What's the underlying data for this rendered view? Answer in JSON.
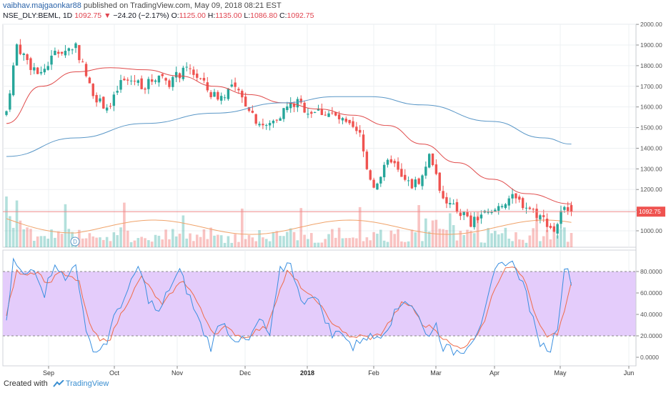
{
  "header": {
    "author": "vaibhav.majgaonkar88",
    "published": " published on TradingView.com, May 09, 2018 08:21 EST"
  },
  "legend": {
    "symbol": "NSE_DLY:BEML, 1D",
    "last": "1092.75",
    "change": "−24.20 (−2.17%)",
    "o_label": "O:",
    "o": "1125.00",
    "h_label": "H:",
    "h": "1135.00",
    "l_label": "L:",
    "l": "1086.80",
    "c_label": "C:",
    "c": "1092.75"
  },
  "footer": {
    "created_with": "Created with",
    "brand": "TradingView"
  },
  "colors": {
    "up": "#26a69a",
    "down": "#ef5350",
    "ma50": "#e04b4b",
    "ma200": "#5a97c7",
    "stoch_k": "#3a8fe0",
    "stoch_d": "#ef6c4a",
    "band": "#e4ccfb",
    "vol_ma": "#f0a36a"
  },
  "earnings_marker": "D",
  "chart_data": [
    {
      "type": "candlestick",
      "y_ticks": [
        "1000.00",
        "1100.00",
        "1200.00",
        "1300.00",
        "1400.00",
        "1500.00",
        "1600.00",
        "1700.00",
        "1800.00",
        "1900.00",
        "2000.00"
      ],
      "ylim": [
        940,
        2000
      ],
      "price_line": 1092.75,
      "price_label": "1092.75",
      "x_ticks": [
        "Sep",
        "Oct",
        "Nov",
        "Dec",
        "2018",
        "Feb",
        "Mar",
        "Apr",
        "May",
        "Jun"
      ],
      "anchors": [
        [
          0,
          1580
        ],
        [
          3,
          1900
        ],
        [
          7,
          1800
        ],
        [
          10,
          1760
        ],
        [
          14,
          1860
        ],
        [
          18,
          1880
        ],
        [
          20,
          1900
        ],
        [
          24,
          1700
        ],
        [
          27,
          1620
        ],
        [
          30,
          1600
        ],
        [
          33,
          1720
        ],
        [
          37,
          1730
        ],
        [
          40,
          1700
        ],
        [
          44,
          1760
        ],
        [
          47,
          1720
        ],
        [
          50,
          1760
        ],
        [
          53,
          1780
        ],
        [
          56,
          1730
        ],
        [
          59,
          1660
        ],
        [
          62,
          1650
        ],
        [
          65,
          1700
        ],
        [
          67,
          1660
        ],
        [
          70,
          1600
        ],
        [
          72,
          1540
        ],
        [
          75,
          1500
        ],
        [
          78,
          1550
        ],
        [
          81,
          1600
        ],
        [
          84,
          1620
        ],
        [
          87,
          1580
        ],
        [
          90,
          1580
        ],
        [
          93,
          1570
        ],
        [
          96,
          1540
        ],
        [
          99,
          1500
        ],
        [
          102,
          1460
        ],
        [
          104,
          1300
        ],
        [
          106,
          1220
        ],
        [
          108,
          1270
        ],
        [
          111,
          1350
        ],
        [
          114,
          1250
        ],
        [
          117,
          1220
        ],
        [
          120,
          1260
        ],
        [
          122,
          1380
        ],
        [
          124,
          1280
        ],
        [
          126,
          1150
        ],
        [
          129,
          1110
        ],
        [
          132,
          1080
        ],
        [
          134,
          1030
        ],
        [
          137,
          1080
        ],
        [
          140,
          1080
        ],
        [
          142,
          1120
        ],
        [
          145,
          1160
        ],
        [
          148,
          1140
        ],
        [
          151,
          1110
        ],
        [
          154,
          1070
        ],
        [
          156,
          1040
        ],
        [
          158,
          1000
        ],
        [
          160,
          1080
        ],
        [
          162,
          1120
        ],
        [
          163,
          1093
        ]
      ],
      "ma50_points": [
        [
          0,
          1520
        ],
        [
          10,
          1700
        ],
        [
          20,
          1770
        ],
        [
          30,
          1790
        ],
        [
          40,
          1780
        ],
        [
          50,
          1750
        ],
        [
          60,
          1700
        ],
        [
          70,
          1660
        ],
        [
          80,
          1620
        ],
        [
          90,
          1590
        ],
        [
          100,
          1560
        ],
        [
          110,
          1510
        ],
        [
          120,
          1420
        ],
        [
          130,
          1330
        ],
        [
          140,
          1250
        ],
        [
          150,
          1180
        ],
        [
          163,
          1130
        ]
      ],
      "ma200_points": [
        [
          0,
          1360
        ],
        [
          20,
          1450
        ],
        [
          40,
          1520
        ],
        [
          60,
          1570
        ],
        [
          80,
          1620
        ],
        [
          95,
          1650
        ],
        [
          105,
          1650
        ],
        [
          120,
          1610
        ],
        [
          140,
          1530
        ],
        [
          155,
          1450
        ],
        [
          163,
          1420
        ]
      ]
    },
    {
      "type": "volume",
      "note": "histogram with moving average overlaid on the price pane"
    },
    {
      "type": "line",
      "name": "Stochastic",
      "y_ticks": [
        "0.0000",
        "20.0000",
        "40.0000",
        "60.0000",
        "80.0000"
      ],
      "ylim": [
        -10,
        100
      ],
      "band": [
        20,
        80
      ],
      "k_anchors": [
        [
          0,
          30
        ],
        [
          2,
          90
        ],
        [
          5,
          75
        ],
        [
          8,
          85
        ],
        [
          11,
          60
        ],
        [
          14,
          90
        ],
        [
          17,
          70
        ],
        [
          20,
          90
        ],
        [
          23,
          20
        ],
        [
          26,
          5
        ],
        [
          29,
          15
        ],
        [
          32,
          45
        ],
        [
          35,
          60
        ],
        [
          38,
          85
        ],
        [
          41,
          55
        ],
        [
          44,
          40
        ],
        [
          47,
          65
        ],
        [
          50,
          80
        ],
        [
          53,
          55
        ],
        [
          56,
          30
        ],
        [
          59,
          10
        ],
        [
          62,
          35
        ],
        [
          65,
          20
        ],
        [
          68,
          15
        ],
        [
          70,
          15
        ],
        [
          73,
          35
        ],
        [
          76,
          20
        ],
        [
          79,
          80
        ],
        [
          82,
          90
        ],
        [
          85,
          50
        ],
        [
          88,
          60
        ],
        [
          91,
          45
        ],
        [
          94,
          20
        ],
        [
          97,
          25
        ],
        [
          100,
          8
        ],
        [
          103,
          20
        ],
        [
          106,
          18
        ],
        [
          109,
          25
        ],
        [
          112,
          40
        ],
        [
          115,
          55
        ],
        [
          118,
          45
        ],
        [
          121,
          20
        ],
        [
          124,
          30
        ],
        [
          126,
          10
        ],
        [
          129,
          5
        ],
        [
          132,
          8
        ],
        [
          135,
          20
        ],
        [
          138,
          40
        ],
        [
          141,
          80
        ],
        [
          144,
          90
        ],
        [
          147,
          85
        ],
        [
          150,
          60
        ],
        [
          153,
          20
        ],
        [
          155,
          10
        ],
        [
          157,
          8
        ],
        [
          159,
          30
        ],
        [
          161,
          85
        ],
        [
          163,
          72
        ]
      ],
      "d_anchors": [
        [
          0,
          40
        ],
        [
          3,
          80
        ],
        [
          6,
          78
        ],
        [
          9,
          80
        ],
        [
          12,
          68
        ],
        [
          15,
          80
        ],
        [
          18,
          75
        ],
        [
          21,
          70
        ],
        [
          24,
          30
        ],
        [
          27,
          15
        ],
        [
          30,
          18
        ],
        [
          33,
          40
        ],
        [
          36,
          58
        ],
        [
          39,
          75
        ],
        [
          42,
          62
        ],
        [
          45,
          48
        ],
        [
          48,
          62
        ],
        [
          51,
          72
        ],
        [
          54,
          58
        ],
        [
          57,
          38
        ],
        [
          60,
          22
        ],
        [
          63,
          28
        ],
        [
          66,
          22
        ],
        [
          69,
          18
        ],
        [
          72,
          25
        ],
        [
          75,
          28
        ],
        [
          78,
          55
        ],
        [
          81,
          80
        ],
        [
          84,
          70
        ],
        [
          87,
          58
        ],
        [
          90,
          52
        ],
        [
          93,
          35
        ],
        [
          96,
          28
        ],
        [
          99,
          18
        ],
        [
          102,
          20
        ],
        [
          105,
          18
        ],
        [
          108,
          22
        ],
        [
          111,
          35
        ],
        [
          114,
          50
        ],
        [
          117,
          48
        ],
        [
          120,
          30
        ],
        [
          123,
          28
        ],
        [
          126,
          18
        ],
        [
          129,
          10
        ],
        [
          132,
          10
        ],
        [
          135,
          18
        ],
        [
          138,
          35
        ],
        [
          141,
          65
        ],
        [
          144,
          85
        ],
        [
          147,
          85
        ],
        [
          150,
          68
        ],
        [
          153,
          35
        ],
        [
          156,
          18
        ],
        [
          159,
          22
        ],
        [
          162,
          55
        ],
        [
          163,
          70
        ]
      ]
    }
  ]
}
